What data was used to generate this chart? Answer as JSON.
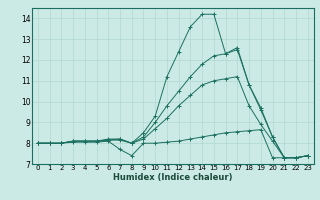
{
  "xlabel": "Humidex (Indice chaleur)",
  "background_color": "#cceae5",
  "grid_color": "#b0d8d0",
  "line_color": "#1a7060",
  "xlim": [
    -0.5,
    23.5
  ],
  "ylim": [
    7,
    14.5
  ],
  "xticks": [
    0,
    1,
    2,
    3,
    4,
    5,
    6,
    7,
    8,
    9,
    10,
    11,
    12,
    13,
    14,
    15,
    16,
    17,
    18,
    19,
    20,
    21,
    22,
    23
  ],
  "yticks": [
    7,
    8,
    9,
    10,
    11,
    12,
    13,
    14
  ],
  "lines": [
    {
      "x": [
        0,
        1,
        2,
        3,
        4,
        5,
        6,
        7,
        8,
        9,
        10,
        11,
        12,
        13,
        14,
        15,
        16,
        17,
        18,
        19,
        20,
        21,
        22,
        23
      ],
      "y": [
        8,
        8,
        8,
        8.1,
        8.1,
        8.1,
        8.2,
        8.2,
        8.0,
        8.5,
        9.3,
        11.2,
        12.4,
        13.6,
        14.2,
        14.2,
        12.3,
        12.6,
        10.8,
        9.7,
        8.3,
        7.3,
        7.3,
        7.4
      ]
    },
    {
      "x": [
        0,
        1,
        2,
        3,
        4,
        5,
        6,
        7,
        8,
        9,
        10,
        11,
        12,
        13,
        14,
        15,
        16,
        17,
        18,
        19,
        20,
        21,
        22,
        23
      ],
      "y": [
        8,
        8,
        8,
        8.05,
        8.05,
        8.05,
        8.1,
        7.7,
        7.4,
        8.0,
        8.0,
        8.05,
        8.1,
        8.2,
        8.3,
        8.4,
        8.5,
        8.55,
        8.6,
        8.65,
        7.3,
        7.3,
        7.3,
        7.4
      ]
    },
    {
      "x": [
        0,
        1,
        2,
        3,
        4,
        5,
        6,
        7,
        8,
        9,
        10,
        11,
        12,
        13,
        14,
        15,
        16,
        17,
        18,
        19,
        20,
        21,
        22,
        23
      ],
      "y": [
        8,
        8,
        8,
        8.1,
        8.1,
        8.1,
        8.15,
        8.2,
        8.0,
        8.3,
        9.0,
        9.8,
        10.5,
        11.2,
        11.8,
        12.2,
        12.3,
        12.5,
        10.8,
        9.6,
        8.3,
        7.3,
        7.3,
        7.4
      ]
    },
    {
      "x": [
        0,
        1,
        2,
        3,
        4,
        5,
        6,
        7,
        8,
        9,
        10,
        11,
        12,
        13,
        14,
        15,
        16,
        17,
        18,
        19,
        20,
        21,
        22,
        23
      ],
      "y": [
        8,
        8,
        8,
        8.1,
        8.1,
        8.1,
        8.15,
        8.15,
        8.0,
        8.2,
        8.7,
        9.2,
        9.8,
        10.3,
        10.8,
        11.0,
        11.1,
        11.2,
        9.8,
        8.9,
        8.1,
        7.3,
        7.3,
        7.4
      ]
    }
  ],
  "xlabel_fontsize": 6,
  "tick_fontsize": 5,
  "ylabel_fontsize": 6
}
